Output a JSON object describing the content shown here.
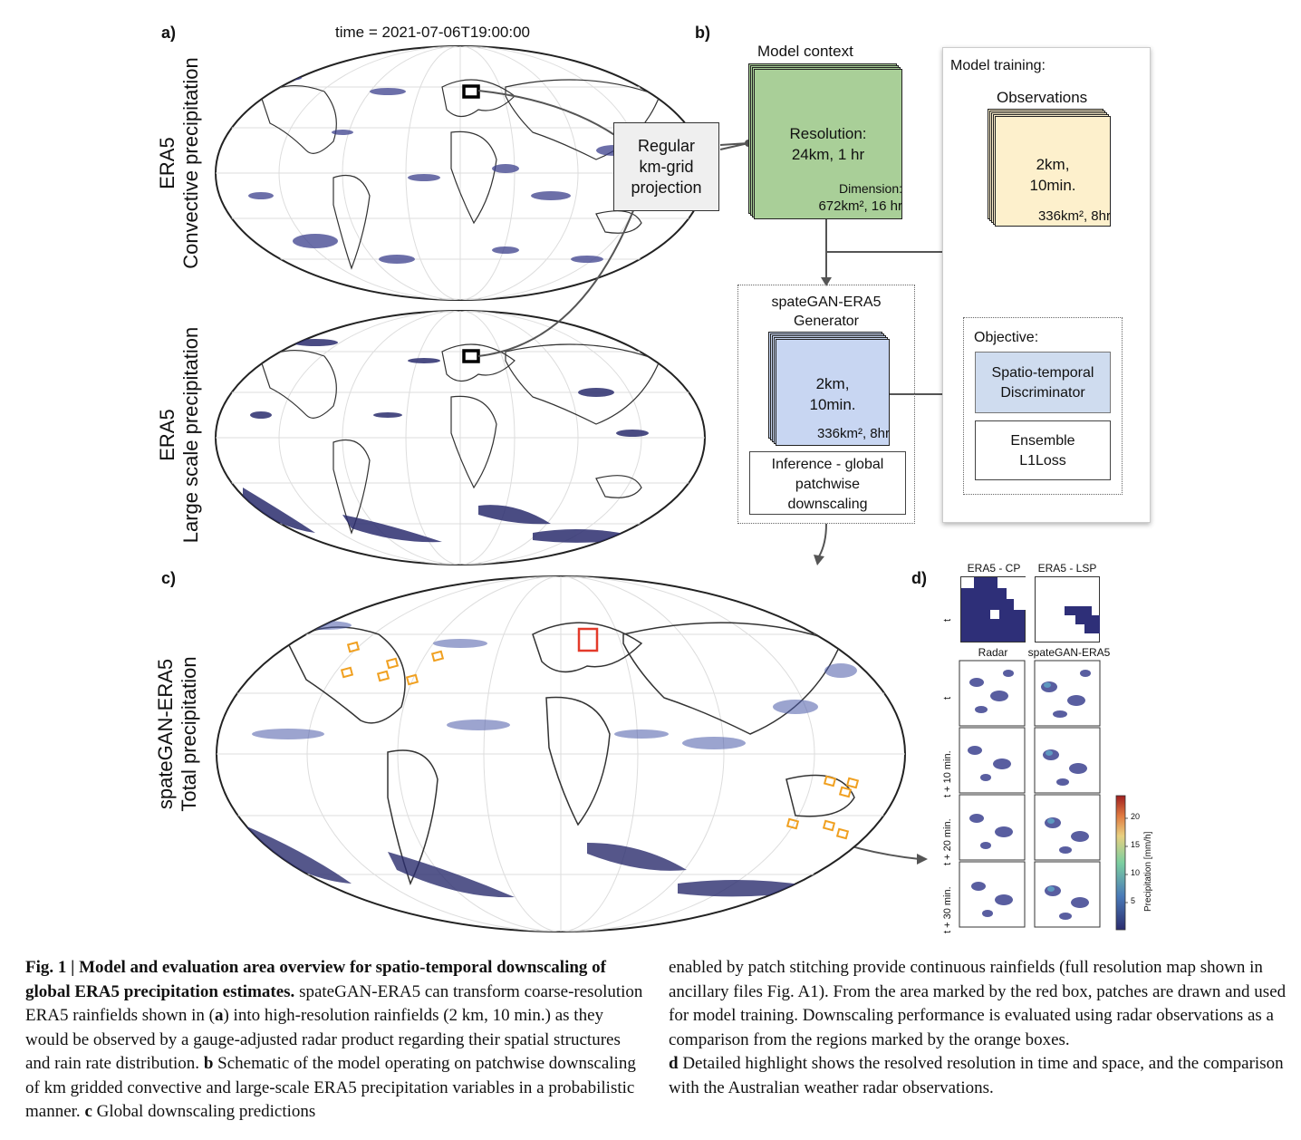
{
  "panel_labels": {
    "a": "a)",
    "b": "b)",
    "c": "c)",
    "d": "d)"
  },
  "panel_a": {
    "time": "time = 2021-07-06T19:00:00",
    "top_label_1": "ERA5",
    "top_label_2": "Convective precipitation",
    "bottom_label_1": "ERA5",
    "bottom_label_2": "Large scale precipitation"
  },
  "panel_b": {
    "projection": [
      "Regular",
      "km-grid",
      "projection"
    ],
    "model_context_title": "Model context",
    "model_context_res": [
      "Resolution:",
      "24km, 1 hr"
    ],
    "model_context_dim": [
      "Dimension:",
      "672km², 16 hr"
    ],
    "model_training_title": "Model training:",
    "observations_title": "Observations",
    "observations_res": [
      "2km,",
      "10min."
    ],
    "observations_dim": "336km², 8hr",
    "generator_title": [
      "spateGAN-ERA5",
      "Generator"
    ],
    "generator_res": [
      "2km,",
      "10min."
    ],
    "generator_dim": "336km², 8hr",
    "inference": [
      "Inference - global",
      "patchwise",
      "downscaling"
    ],
    "objective_title": "Objective:",
    "discriminator": [
      "Spatio-temporal",
      "Discriminator"
    ],
    "loss": [
      "Ensemble",
      "L1Loss"
    ]
  },
  "panel_c": {
    "label_1": "spateGAN-ERA5",
    "label_2": "Total precipitation"
  },
  "panel_d": {
    "col_titles_top": [
      "ERA5 - CP",
      "ERA5 - LSP"
    ],
    "col_titles_bottom": [
      "Radar",
      "spateGAN-ERA5"
    ],
    "row_labels_top": [
      "t"
    ],
    "row_labels": [
      "t",
      "t + 10 min.",
      "t + 20 min.",
      "t + 30 min."
    ],
    "colorbar_label": "Precipitation [mm/h]",
    "colorbar_ticks": [
      "5",
      "10",
      "15",
      "20"
    ]
  },
  "caption": {
    "fig_label": "Fig. 1 | Model and evaluation area overview for spatio-temporal downscaling of global ERA5 precipitation estimates.",
    "left_text_1": " spateGAN-ERA5 can transform coarse-resolution ERA5 rainfields shown in (",
    "a_bold": "a",
    "left_text_2": ") into high-resolution rainfields (2 km, 10 min.) as they would be observed by a gauge-adjusted radar product regarding their spatial structures and rain rate distribution. ",
    "b_bold": "b",
    "left_text_3": " Schematic of the model operating on patchwise downscaling of km gridded convective and large-scale ERA5 precipitation variables in a probabilistic manner. ",
    "c_bold": "c",
    "left_text_4": " Global downscaling predictions",
    "right_text_1": "enabled by patch stitching provide continuous rainfields (full resolution map shown in ancillary files Fig. A1). From the area marked by the red box, patches are drawn and used for model training. Downscaling performance is evaluated using radar observations as a comparison from the regions marked by the orange boxes.",
    "d_bold": "d",
    "right_text_2": " Detailed highlight shows the resolved resolution in time and space, and the comparison with the Australian weather radar observations."
  },
  "colors": {
    "precip_dark": "#2b2d6e",
    "precip_mid": "#4a5aa8",
    "context_green": "#a9cf98",
    "obs_yellow": "#fdf0cc",
    "gen_blue": "#c8d6f2",
    "disc_blue": "#cfdcef",
    "red_box": "#e33a2a",
    "orange_box": "#f0a020"
  }
}
